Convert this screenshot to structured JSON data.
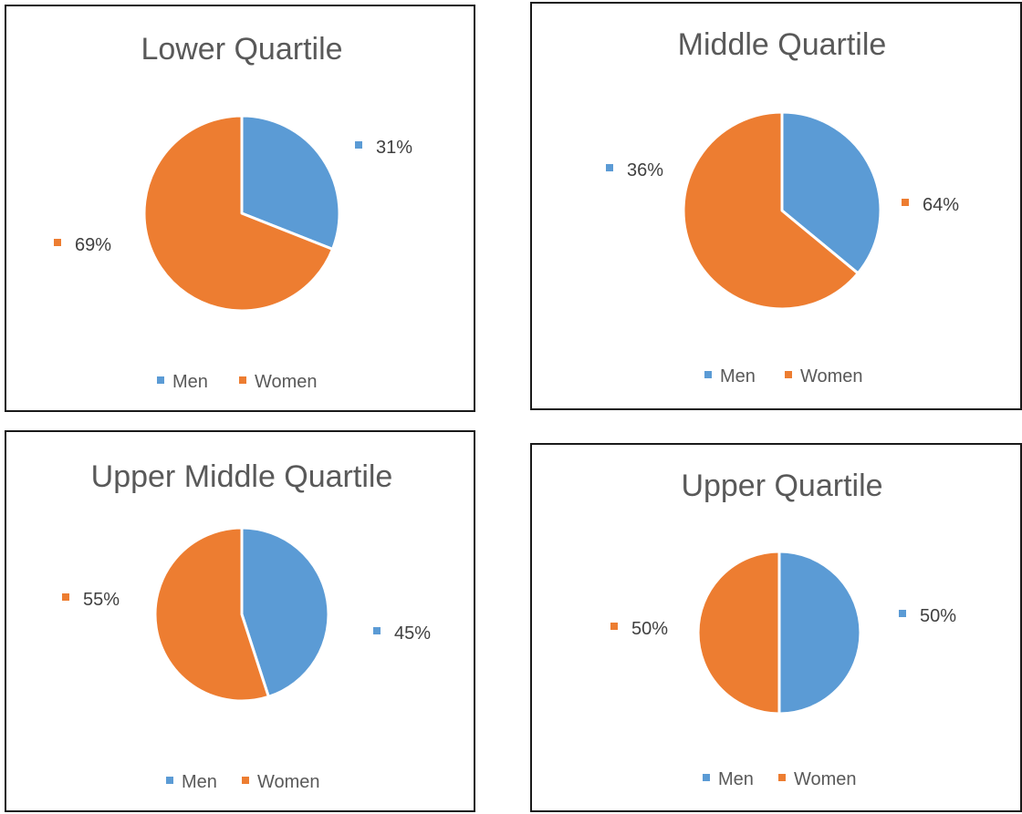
{
  "colors": {
    "men": "#5B9BD5",
    "women": "#ED7D31"
  },
  "chart_data": [
    {
      "type": "pie",
      "title": "Lower Quartile",
      "categories": [
        "Men",
        "Women"
      ],
      "values": [
        31,
        69
      ],
      "data_labels": [
        "31%",
        "69%"
      ],
      "legend": {
        "position": "bottom",
        "entries": [
          "Men",
          "Women"
        ]
      }
    },
    {
      "type": "pie",
      "title": "Middle Quartile",
      "categories": [
        "Men",
        "Women"
      ],
      "values": [
        36,
        64
      ],
      "data_labels": [
        "36%",
        "64%"
      ],
      "legend": {
        "position": "bottom",
        "entries": [
          "Men",
          "Women"
        ]
      }
    },
    {
      "type": "pie",
      "title": "Upper Middle Quartile",
      "categories": [
        "Men",
        "Women"
      ],
      "values": [
        45,
        55
      ],
      "data_labels": [
        "45%",
        "55%"
      ],
      "legend": {
        "position": "bottom",
        "entries": [
          "Men",
          "Women"
        ]
      }
    },
    {
      "type": "pie",
      "title": "Upper Quartile",
      "categories": [
        "Men",
        "Women"
      ],
      "values": [
        50,
        50
      ],
      "data_labels": [
        "50%",
        "50%"
      ],
      "legend": {
        "position": "bottom",
        "entries": [
          "Men",
          "Women"
        ]
      }
    }
  ]
}
